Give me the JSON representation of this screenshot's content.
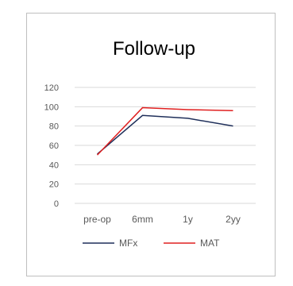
{
  "chart_data": {
    "type": "line",
    "title": "Follow-up",
    "xlabel": "",
    "ylabel": "",
    "categories": [
      "pre-op",
      "6mm",
      "1y",
      "2yy"
    ],
    "ylim": [
      0,
      120
    ],
    "yticks": [
      0,
      20,
      40,
      60,
      80,
      100,
      120
    ],
    "grid": true,
    "legend_position": "bottom",
    "series": [
      {
        "name": "MFx",
        "color": "#1f2f5a",
        "values": [
          51,
          91,
          88,
          80
        ]
      },
      {
        "name": "MAT",
        "color": "#e02020",
        "values": [
          50,
          99,
          97,
          96
        ]
      }
    ]
  }
}
